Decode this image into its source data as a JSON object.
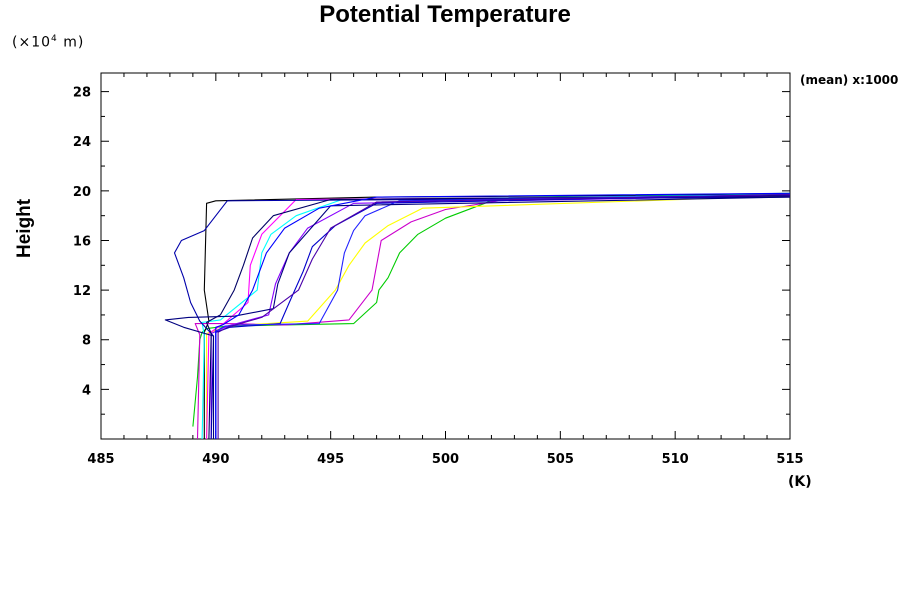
{
  "chart_data": {
    "type": "line",
    "title": "Potential Temperature",
    "xlabel": "",
    "x_unit": "(K)",
    "ylabel": "Height",
    "y_unit_prefix": "(×10",
    "y_unit_exp": "4",
    "y_unit_suffix": " m)",
    "note": "(mean) x:1000",
    "xlim": [
      485,
      515
    ],
    "ylim": [
      0,
      29.5
    ],
    "x_ticks": [
      485,
      490,
      495,
      500,
      505,
      510,
      515
    ],
    "y_ticks": [
      4,
      8,
      12,
      16,
      20,
      24,
      28
    ],
    "x_minor_step": 1,
    "y_minor_step": 2,
    "grid": false,
    "series": [
      {
        "color": "#00cc00",
        "x": [
          489.0,
          489.2,
          489.3,
          489.4,
          489.6,
          490.5,
          496,
          497,
          497.1,
          497.5,
          498,
          498.8,
          500,
          502,
          506,
          515
        ],
        "y": [
          1,
          5,
          8,
          8.6,
          8.9,
          9.1,
          9.3,
          11,
          12,
          13,
          15,
          16.5,
          17.8,
          19.2,
          19.6,
          19.8
        ]
      },
      {
        "color": "#000000",
        "x": [
          489.5,
          489.5,
          489.7,
          489.5,
          489.6,
          490,
          497,
          506,
          515
        ],
        "y": [
          0,
          8.6,
          9.5,
          12,
          19,
          19.2,
          19.5,
          19.6,
          19.7
        ]
      },
      {
        "color": "#cc00cc",
        "x": [
          489.2,
          489.3,
          489.1,
          490.5,
          493,
          495.8,
          496.8,
          497.2,
          498.5,
          500,
          503,
          515
        ],
        "y": [
          0,
          8.4,
          9.3,
          9.3,
          9.2,
          9.6,
          12,
          16,
          17.5,
          18.5,
          19.4,
          19.6
        ]
      },
      {
        "color": "#00ffff",
        "x": [
          489.4,
          489.5,
          489.4,
          490.2,
          491.8,
          492,
          492.4,
          493.5,
          495.5,
          515
        ],
        "y": [
          0,
          8.3,
          9.4,
          9.6,
          12,
          15,
          16.5,
          18,
          19.3,
          19.7
        ]
      },
      {
        "color": "#ffff00",
        "x": [
          489.6,
          489.6,
          490.5,
          494,
          495.2,
          495.8,
          496.5,
          497.5,
          499,
          515
        ],
        "y": [
          0,
          8.5,
          9.1,
          9.5,
          12,
          14,
          15.8,
          17.2,
          18.6,
          19.6
        ]
      },
      {
        "color": "#8800ff",
        "x": [
          489.8,
          489.8,
          490.5,
          492.3,
          492.6,
          493.2,
          494,
          496,
          515
        ],
        "y": [
          0,
          8.5,
          9.1,
          10,
          12.5,
          15,
          17,
          19,
          19.6
        ]
      },
      {
        "color": "#ff00ff",
        "x": [
          489.6,
          489.7,
          490.4,
          491.4,
          491.5,
          492,
          493.5,
          515
        ],
        "y": [
          0,
          8.5,
          9.4,
          11,
          14,
          16.5,
          19.3,
          19.6
        ]
      },
      {
        "color": "#0000aa",
        "x": [
          489.8,
          489.9,
          489.3,
          488.9,
          488.6,
          488.2,
          488.5,
          489.5,
          490.5,
          515
        ],
        "y": [
          0,
          8.3,
          9.5,
          11,
          13,
          15,
          16,
          16.8,
          19.2,
          19.5
        ]
      },
      {
        "color": "#000066",
        "x": [
          489.7,
          489.8,
          489.6,
          490.2,
          490.8,
          491.2,
          491.6,
          492.5,
          495,
          515
        ],
        "y": [
          0,
          8.5,
          9.4,
          10,
          12,
          14,
          16.2,
          18,
          19.3,
          19.6
        ]
      },
      {
        "color": "#0000cc",
        "x": [
          490.0,
          490.0,
          490.6,
          492.8,
          493.2,
          493.8,
          494.2,
          495.2,
          497,
          515
        ],
        "y": [
          0,
          8.6,
          9,
          9.3,
          11,
          13.5,
          15.5,
          17.2,
          19,
          19.7
        ]
      },
      {
        "color": "#2222ff",
        "x": [
          490.0,
          490.0,
          490.4,
          491.2,
          494.5,
          495.3,
          495.6,
          496,
          496.5,
          498,
          515
        ],
        "y": [
          0,
          8.7,
          9.1,
          9.2,
          9.3,
          12,
          15,
          16.8,
          18,
          19.2,
          19.7
        ]
      },
      {
        "color": "#000080",
        "x": [
          489.9,
          489.9,
          488.6,
          487.8,
          488.8,
          490.8,
          492.5,
          492.7,
          493.2,
          495,
          515
        ],
        "y": [
          0,
          8.3,
          9.0,
          9.6,
          9.8,
          9.9,
          10.5,
          12.5,
          15,
          18.8,
          19.5
        ]
      },
      {
        "color": "#4a00aa",
        "x": [
          490.1,
          490.1,
          490.5,
          492,
          493.6,
          494.2,
          495,
          497,
          515
        ],
        "y": [
          0,
          8.6,
          9,
          9.8,
          12,
          14.5,
          17,
          19.1,
          19.7
        ]
      },
      {
        "color": "#0000ff",
        "x": [
          490.0,
          490.0,
          490.0,
          490.3,
          491,
          491.6,
          492.2,
          493,
          494.5,
          497,
          515
        ],
        "y": [
          0,
          8.6,
          9.0,
          9.2,
          10,
          12,
          15,
          17,
          18.6,
          19.5,
          19.8
        ]
      }
    ]
  }
}
